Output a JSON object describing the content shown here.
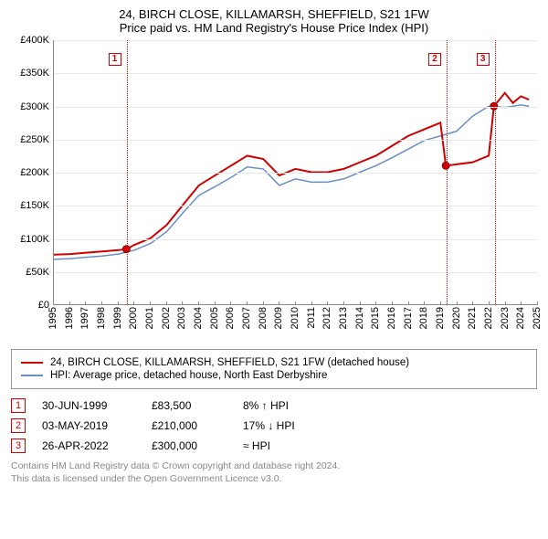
{
  "title_line1": "24, BIRCH CLOSE, KILLAMARSH, SHEFFIELD, S21 1FW",
  "title_line2": "Price paid vs. HM Land Registry's House Price Index (HPI)",
  "chart": {
    "type": "line",
    "background_color": "#ffffff",
    "grid_color": "#e8e8e8",
    "axis_color": "#888888",
    "x_start_year": 1995,
    "x_end_year": 2025,
    "y_min": 0,
    "y_max": 400000,
    "y_tick_step": 50000,
    "y_ticks": [
      "£0",
      "£50K",
      "£100K",
      "£150K",
      "£200K",
      "£250K",
      "£300K",
      "£350K",
      "£400K"
    ],
    "x_ticks": [
      "1995",
      "1996",
      "1997",
      "1998",
      "1999",
      "2000",
      "2001",
      "2002",
      "2003",
      "2004",
      "2005",
      "2006",
      "2007",
      "2008",
      "2009",
      "2010",
      "2011",
      "2012",
      "2013",
      "2014",
      "2015",
      "2016",
      "2017",
      "2018",
      "2019",
      "2020",
      "2021",
      "2022",
      "2023",
      "2024",
      "2025"
    ],
    "x_label_fontsize": 11,
    "y_label_fontsize": 11,
    "series": {
      "price_paid": {
        "color": "#d00000",
        "width": 2,
        "label": "24, BIRCH CLOSE, KILLAMARSH, SHEFFIELD, S21 1FW (detached house)",
        "points": [
          [
            1995.0,
            75000
          ],
          [
            1996.0,
            76000
          ],
          [
            1997.0,
            78000
          ],
          [
            1998.0,
            80000
          ],
          [
            1999.0,
            82000
          ],
          [
            1999.5,
            83500
          ],
          [
            2000.0,
            90000
          ],
          [
            2001.0,
            100000
          ],
          [
            2002.0,
            120000
          ],
          [
            2003.0,
            150000
          ],
          [
            2004.0,
            180000
          ],
          [
            2005.0,
            195000
          ],
          [
            2006.0,
            210000
          ],
          [
            2007.0,
            225000
          ],
          [
            2008.0,
            220000
          ],
          [
            2009.0,
            195000
          ],
          [
            2010.0,
            205000
          ],
          [
            2011.0,
            200000
          ],
          [
            2012.0,
            200000
          ],
          [
            2013.0,
            205000
          ],
          [
            2014.0,
            215000
          ],
          [
            2015.0,
            225000
          ],
          [
            2016.0,
            240000
          ],
          [
            2017.0,
            255000
          ],
          [
            2018.0,
            265000
          ],
          [
            2019.0,
            275000
          ],
          [
            2019.34,
            210000
          ],
          [
            2020.0,
            212000
          ],
          [
            2021.0,
            215000
          ],
          [
            2022.0,
            225000
          ],
          [
            2022.32,
            300000
          ],
          [
            2023.0,
            320000
          ],
          [
            2023.5,
            305000
          ],
          [
            2024.0,
            315000
          ],
          [
            2024.5,
            310000
          ]
        ]
      },
      "hpi": {
        "color": "#6a8fc7",
        "width": 1.5,
        "label": "HPI: Average price, detached house, North East Derbyshire",
        "points": [
          [
            1995.0,
            68000
          ],
          [
            1996.0,
            69000
          ],
          [
            1997.0,
            71000
          ],
          [
            1998.0,
            73000
          ],
          [
            1999.0,
            76000
          ],
          [
            2000.0,
            82000
          ],
          [
            2001.0,
            92000
          ],
          [
            2002.0,
            110000
          ],
          [
            2003.0,
            138000
          ],
          [
            2004.0,
            165000
          ],
          [
            2005.0,
            178000
          ],
          [
            2006.0,
            192000
          ],
          [
            2007.0,
            208000
          ],
          [
            2008.0,
            205000
          ],
          [
            2009.0,
            180000
          ],
          [
            2010.0,
            190000
          ],
          [
            2011.0,
            185000
          ],
          [
            2012.0,
            185000
          ],
          [
            2013.0,
            190000
          ],
          [
            2014.0,
            200000
          ],
          [
            2015.0,
            210000
          ],
          [
            2016.0,
            222000
          ],
          [
            2017.0,
            235000
          ],
          [
            2018.0,
            248000
          ],
          [
            2019.0,
            255000
          ],
          [
            2020.0,
            262000
          ],
          [
            2021.0,
            285000
          ],
          [
            2022.0,
            300000
          ],
          [
            2023.0,
            298000
          ],
          [
            2024.0,
            302000
          ],
          [
            2024.5,
            300000
          ]
        ]
      }
    },
    "event_markers": [
      {
        "n": "1",
        "year": 1999.5,
        "value": 83500
      },
      {
        "n": "2",
        "year": 2019.34,
        "value": 210000
      },
      {
        "n": "3",
        "year": 2022.32,
        "value": 300000
      }
    ],
    "point_marker_color": "#d00000",
    "point_marker_radius": 4
  },
  "legend": {
    "items": [
      {
        "color": "#d00000",
        "label": "24, BIRCH CLOSE, KILLAMARSH, SHEFFIELD, S21 1FW (detached house)"
      },
      {
        "color": "#6a8fc7",
        "label": "HPI: Average price, detached house, North East Derbyshire"
      }
    ]
  },
  "events": [
    {
      "n": "1",
      "date": "30-JUN-1999",
      "price": "£83,500",
      "delta": "8% ↑ HPI"
    },
    {
      "n": "2",
      "date": "03-MAY-2019",
      "price": "£210,000",
      "delta": "17% ↓ HPI"
    },
    {
      "n": "3",
      "date": "26-APR-2022",
      "price": "£300,000",
      "delta": "≈ HPI"
    }
  ],
  "footer_line1": "Contains HM Land Registry data © Crown copyright and database right 2024.",
  "footer_line2": "This data is licensed under the Open Government Licence v3.0."
}
